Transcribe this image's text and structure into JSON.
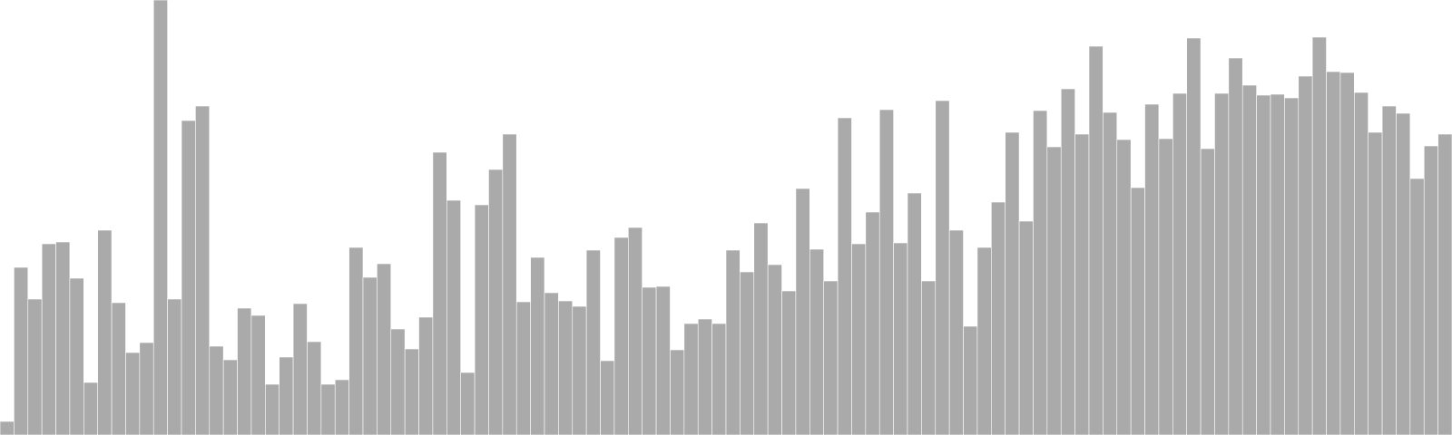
{
  "chart_data": {
    "type": "bar",
    "title": "",
    "xlabel": "",
    "ylabel": "",
    "ylim": [
      0,
      480
    ],
    "grid": false,
    "legend": "none",
    "bar_color": "#aaaaaa",
    "bar_edge_color": "#ffffff",
    "series": [
      {
        "values": [
          15,
          185,
          150,
          211,
          213,
          173,
          58,
          226,
          146,
          91,
          102,
          480,
          150,
          347,
          363,
          98,
          83,
          140,
          132,
          56,
          86,
          145,
          103,
          56,
          61,
          207,
          174,
          189,
          117,
          95,
          130,
          312,
          259,
          69,
          254,
          293,
          332,
          147,
          196,
          157,
          148,
          142,
          204,
          82,
          218,
          229,
          163,
          164,
          94,
          123,
          128,
          123,
          204,
          180,
          234,
          188,
          159,
          272,
          205,
          170,
          350,
          211,
          246,
          359,
          212,
          267,
          170,
          369,
          226,
          120,
          207,
          257,
          334,
          236,
          358,
          318,
          382,
          332,
          429,
          356,
          326,
          273,
          365,
          327,
          377,
          438,
          316,
          377,
          416,
          386,
          375,
          376,
          372,
          396,
          439,
          401,
          400,
          378,
          334,
          363,
          355,
          283,
          319,
          332
        ]
      }
    ]
  }
}
